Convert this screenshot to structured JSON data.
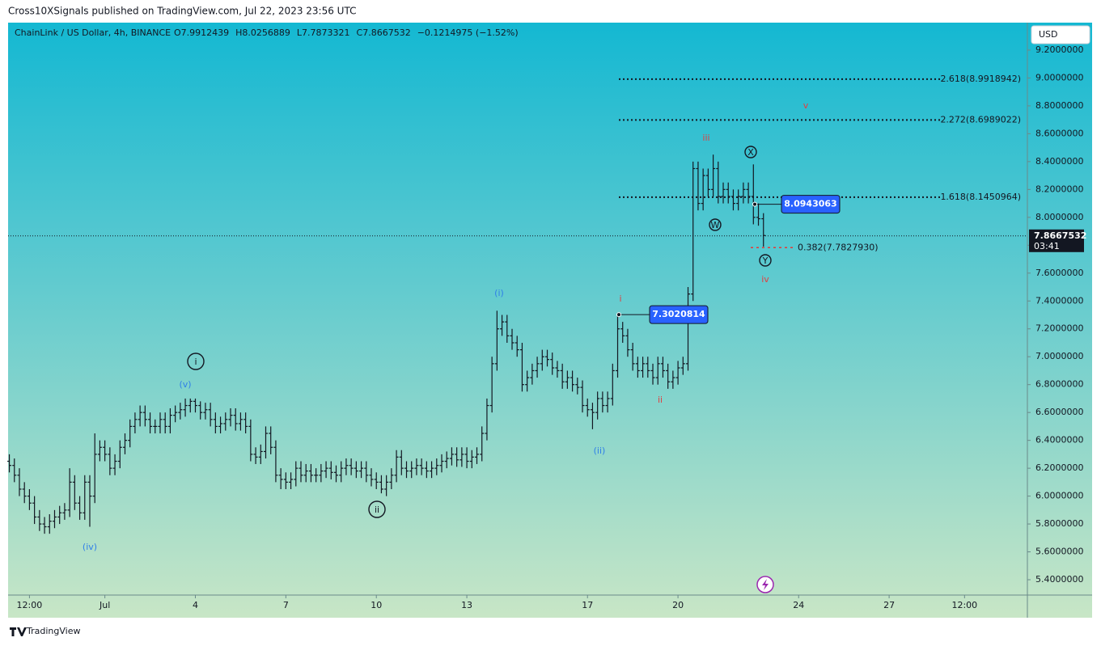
{
  "header": {
    "publisher": "Cross10XSignals published on TradingView.com, Jul 22, 2023 23:56 UTC",
    "brand": "TradingView",
    "currency_button": "USD"
  },
  "chart_data": {
    "type": "ohlc",
    "symbol": "ChainLink / US Dollar, 4h, BINANCE",
    "ohlc_readout": [
      "O7.9912439",
      "H8.0256889",
      "L7.7873321",
      "C7.8667532",
      "−0.1214975 (−1.52%)"
    ],
    "x": [
      -76,
      -72,
      -68,
      -64,
      -60,
      -56,
      -52,
      -48,
      -44,
      -40,
      -36,
      -32,
      -28,
      -24,
      -20,
      -16,
      -12,
      -8,
      -4,
      0,
      4,
      8,
      12,
      16,
      20,
      24,
      28,
      32,
      36,
      40,
      44,
      48,
      52,
      56,
      60,
      64,
      68,
      72,
      76,
      80,
      84,
      88,
      92,
      96,
      100,
      104,
      108,
      112,
      116,
      120,
      124,
      128,
      132,
      136,
      140,
      144,
      148,
      152,
      156,
      160,
      164,
      168,
      172,
      176,
      180,
      184,
      188,
      192,
      196,
      200,
      204,
      208,
      212,
      216,
      220,
      224,
      228,
      232,
      236,
      240,
      244,
      248,
      252,
      256,
      260,
      264,
      268,
      272,
      276,
      280,
      284,
      288,
      292,
      296,
      300,
      304,
      308,
      312,
      316,
      320,
      324,
      328,
      332,
      336,
      340,
      344,
      348,
      352,
      356,
      360,
      364,
      368,
      372,
      376,
      380,
      384,
      388,
      392,
      396,
      400,
      404,
      408,
      412,
      416,
      420,
      424,
      428,
      432,
      436,
      440,
      444,
      448,
      452,
      456,
      460,
      464,
      468,
      472,
      476,
      480,
      484,
      488,
      492,
      496,
      500,
      504,
      508,
      512,
      516,
      520,
      524
    ],
    "open": [
      6.25,
      6.22,
      6.15,
      6.05,
      6.0,
      5.95,
      5.85,
      5.8,
      5.78,
      5.82,
      5.85,
      5.88,
      5.9,
      6.1,
      5.95,
      5.88,
      6.1,
      6.0,
      6.3,
      6.35,
      6.3,
      6.2,
      6.25,
      6.35,
      6.4,
      6.5,
      6.55,
      6.6,
      6.55,
      6.5,
      6.5,
      6.55,
      6.5,
      6.58,
      6.6,
      6.62,
      6.65,
      6.68,
      6.65,
      6.6,
      6.62,
      6.55,
      6.5,
      6.52,
      6.55,
      6.58,
      6.52,
      6.55,
      6.5,
      6.3,
      6.28,
      6.32,
      6.45,
      6.35,
      6.15,
      6.12,
      6.1,
      6.12,
      6.2,
      6.15,
      6.18,
      6.15,
      6.15,
      6.18,
      6.2,
      6.17,
      6.15,
      6.2,
      6.22,
      6.2,
      6.18,
      6.2,
      6.15,
      6.12,
      6.1,
      6.05,
      6.1,
      6.15,
      6.28,
      6.2,
      6.18,
      6.2,
      6.22,
      6.2,
      6.18,
      6.2,
      6.22,
      6.25,
      6.27,
      6.3,
      6.26,
      6.3,
      6.25,
      6.28,
      6.3,
      6.45,
      6.65,
      6.95,
      7.2,
      7.25,
      7.15,
      7.1,
      7.05,
      6.8,
      6.85,
      6.9,
      6.95,
      7.0,
      6.98,
      6.92,
      6.9,
      6.82,
      6.85,
      6.8,
      6.78,
      6.65,
      6.62,
      6.6,
      6.7,
      6.65,
      6.7,
      6.9,
      7.2,
      7.15,
      7.05,
      6.95,
      6.9,
      6.95,
      6.9,
      6.85,
      6.95,
      6.9,
      6.82,
      6.85,
      6.92,
      6.95,
      7.45,
      8.35,
      8.1,
      8.3,
      8.2,
      8.35,
      8.15,
      8.2,
      8.15,
      8.1,
      8.15,
      8.2,
      8.15,
      8.0,
      7.99
    ],
    "high": [
      6.3,
      6.27,
      6.2,
      6.1,
      6.05,
      6.0,
      5.9,
      5.85,
      5.87,
      5.9,
      5.93,
      5.95,
      6.2,
      6.15,
      6.0,
      6.15,
      6.15,
      6.45,
      6.4,
      6.4,
      6.35,
      6.3,
      6.4,
      6.45,
      6.55,
      6.6,
      6.65,
      6.65,
      6.6,
      6.55,
      6.6,
      6.6,
      6.63,
      6.65,
      6.67,
      6.7,
      6.7,
      6.7,
      6.68,
      6.67,
      6.67,
      6.6,
      6.57,
      6.6,
      6.63,
      6.63,
      6.6,
      6.6,
      6.55,
      6.35,
      6.37,
      6.5,
      6.5,
      6.4,
      6.2,
      6.17,
      6.17,
      6.25,
      6.25,
      6.23,
      6.23,
      6.2,
      6.23,
      6.25,
      6.25,
      6.22,
      6.25,
      6.27,
      6.27,
      6.25,
      6.25,
      6.25,
      6.2,
      6.17,
      6.15,
      6.15,
      6.2,
      6.33,
      6.33,
      6.25,
      6.25,
      6.27,
      6.27,
      6.25,
      6.25,
      6.27,
      6.3,
      6.32,
      6.35,
      6.35,
      6.35,
      6.35,
      6.33,
      6.35,
      6.5,
      6.7,
      7.0,
      7.33,
      7.3,
      7.3,
      7.2,
      7.15,
      7.1,
      6.9,
      6.95,
      7.0,
      7.05,
      7.05,
      7.03,
      6.97,
      6.95,
      6.9,
      6.9,
      6.85,
      6.83,
      6.7,
      6.67,
      6.75,
      6.75,
      6.75,
      6.95,
      7.3,
      7.25,
      7.2,
      7.1,
      7.0,
      7.0,
      7.0,
      6.95,
      7.0,
      7.0,
      6.95,
      6.9,
      6.97,
      7.0,
      7.5,
      8.4,
      8.4,
      8.35,
      8.35,
      8.45,
      8.4,
      8.25,
      8.25,
      8.2,
      8.2,
      8.25,
      8.25,
      8.38,
      8.1,
      8.03
    ],
    "low": [
      6.17,
      6.1,
      6.0,
      5.95,
      5.9,
      5.8,
      5.75,
      5.73,
      5.73,
      5.77,
      5.8,
      5.83,
      5.85,
      5.9,
      5.83,
      5.83,
      5.78,
      5.95,
      6.25,
      6.25,
      6.15,
      6.15,
      6.2,
      6.3,
      6.35,
      6.45,
      6.5,
      6.5,
      6.45,
      6.45,
      6.45,
      6.45,
      6.45,
      6.53,
      6.55,
      6.57,
      6.6,
      6.6,
      6.55,
      6.55,
      6.5,
      6.45,
      6.45,
      6.47,
      6.5,
      6.47,
      6.47,
      6.45,
      6.25,
      6.23,
      6.23,
      6.27,
      6.3,
      6.1,
      6.05,
      6.05,
      6.05,
      6.07,
      6.1,
      6.1,
      6.1,
      6.1,
      6.1,
      6.13,
      6.12,
      6.1,
      6.1,
      6.15,
      6.15,
      6.13,
      6.13,
      6.1,
      6.07,
      6.05,
      6.02,
      6.0,
      6.05,
      6.1,
      6.15,
      6.13,
      6.13,
      6.15,
      6.15,
      6.13,
      6.13,
      6.15,
      6.17,
      6.2,
      6.22,
      6.21,
      6.21,
      6.2,
      6.2,
      6.23,
      6.25,
      6.4,
      6.6,
      6.9,
      7.15,
      7.1,
      7.05,
      7.0,
      6.75,
      6.75,
      6.8,
      6.85,
      6.9,
      6.93,
      6.87,
      6.85,
      6.77,
      6.77,
      6.75,
      6.73,
      6.6,
      6.57,
      6.48,
      6.55,
      6.6,
      6.6,
      6.65,
      6.85,
      7.1,
      7.0,
      6.9,
      6.85,
      6.85,
      6.85,
      6.8,
      6.8,
      6.85,
      6.77,
      6.77,
      6.8,
      6.87,
      6.9,
      7.4,
      8.05,
      8.05,
      8.15,
      8.15,
      8.1,
      8.1,
      8.1,
      8.05,
      8.05,
      8.1,
      8.1,
      7.95,
      7.94,
      7.79
    ],
    "close": [
      6.22,
      6.15,
      6.05,
      6.0,
      5.95,
      5.85,
      5.8,
      5.78,
      5.82,
      5.85,
      5.88,
      5.9,
      6.1,
      5.95,
      5.88,
      6.1,
      6.0,
      6.3,
      6.35,
      6.3,
      6.2,
      6.25,
      6.35,
      6.4,
      6.5,
      6.55,
      6.6,
      6.55,
      6.5,
      6.5,
      6.55,
      6.5,
      6.58,
      6.6,
      6.62,
      6.65,
      6.68,
      6.65,
      6.6,
      6.62,
      6.55,
      6.5,
      6.52,
      6.55,
      6.58,
      6.52,
      6.55,
      6.5,
      6.3,
      6.28,
      6.32,
      6.45,
      6.35,
      6.15,
      6.12,
      6.1,
      6.12,
      6.2,
      6.15,
      6.18,
      6.15,
      6.15,
      6.18,
      6.2,
      6.17,
      6.15,
      6.2,
      6.22,
      6.2,
      6.18,
      6.2,
      6.15,
      6.12,
      6.1,
      6.05,
      6.1,
      6.15,
      6.28,
      6.2,
      6.18,
      6.2,
      6.22,
      6.2,
      6.18,
      6.2,
      6.22,
      6.25,
      6.27,
      6.3,
      6.26,
      6.3,
      6.25,
      6.28,
      6.3,
      6.45,
      6.65,
      6.95,
      7.2,
      7.25,
      7.15,
      7.1,
      7.05,
      6.8,
      6.85,
      6.9,
      6.95,
      7.0,
      6.98,
      6.92,
      6.9,
      6.82,
      6.85,
      6.8,
      6.78,
      6.65,
      6.62,
      6.6,
      6.7,
      6.65,
      6.7,
      6.9,
      7.2,
      7.15,
      7.05,
      6.95,
      6.9,
      6.95,
      6.9,
      6.85,
      6.95,
      6.9,
      6.82,
      6.85,
      6.92,
      6.95,
      7.45,
      8.35,
      8.1,
      8.3,
      8.2,
      8.35,
      8.15,
      8.2,
      8.15,
      8.1,
      8.15,
      8.2,
      8.15,
      8.0,
      7.99,
      7.87
    ],
    "color": "#131722",
    "xlim": [
      -77,
      734
    ],
    "xticks": [
      {
        "value": -60,
        "label": "12:00"
      },
      {
        "value": 0,
        "label": "Jul"
      },
      {
        "value": 72,
        "label": "4"
      },
      {
        "value": 144,
        "label": "7"
      },
      {
        "value": 216,
        "label": "10"
      },
      {
        "value": 288,
        "label": "13"
      },
      {
        "value": 384,
        "label": "17"
      },
      {
        "value": 456,
        "label": "20"
      },
      {
        "value": 552,
        "label": "24"
      },
      {
        "value": 624,
        "label": "27"
      },
      {
        "value": 684,
        "label": "12:00"
      }
    ],
    "ylim": [
      5.29,
      9.397
    ],
    "yticks": [
      {
        "value": 5.4,
        "label": "5.4000000"
      },
      {
        "value": 5.6,
        "label": "5.6000000"
      },
      {
        "value": 5.8,
        "label": "5.8000000"
      },
      {
        "value": 6.0,
        "label": "6.0000000"
      },
      {
        "value": 6.2,
        "label": "6.2000000"
      },
      {
        "value": 6.4,
        "label": "6.4000000"
      },
      {
        "value": 6.6,
        "label": "6.6000000"
      },
      {
        "value": 6.8,
        "label": "6.8000000"
      },
      {
        "value": 7.0,
        "label": "7.0000000"
      },
      {
        "value": 7.2,
        "label": "7.2000000"
      },
      {
        "value": 7.4,
        "label": "7.4000000"
      },
      {
        "value": 7.6,
        "label": "7.6000000"
      },
      {
        "value": 7.8,
        "label": "7.8000000"
      },
      {
        "value": 8.0,
        "label": "8.0000000"
      },
      {
        "value": 8.2,
        "label": "8.2000000"
      },
      {
        "value": 8.4,
        "label": "8.4000000"
      },
      {
        "value": 8.6,
        "label": "8.6000000"
      },
      {
        "value": 8.8,
        "label": "8.8000000"
      },
      {
        "value": 9.0,
        "label": "9.0000000"
      },
      {
        "value": 9.2,
        "label": "9.2000000"
      }
    ],
    "grid": false,
    "current_price": 7.8667532,
    "countdown": "03:41",
    "fib_levels": [
      {
        "value": 8.9918942,
        "label": "2.618(8.9918942)",
        "color": "#131722"
      },
      {
        "value": 8.6989022,
        "label": "2.272(8.6989022)",
        "color": "#131722"
      },
      {
        "value": 8.1450964,
        "label": "1.618(8.1450964)",
        "color": "#131722"
      },
      {
        "value": 7.782793,
        "label": "0.382(7.7827930)",
        "color": "#e53935"
      }
    ],
    "price_labels": [
      8.0943063,
      7.3020814
    ],
    "wave_labels": [
      {
        "text": "(iv)",
        "color": "#2f7fe8",
        "circled": false
      },
      {
        "text": "(v)",
        "color": "#2f7fe8",
        "circled": false
      },
      {
        "text": "i",
        "color": "#131722",
        "circled": true
      },
      {
        "text": "ii",
        "color": "#131722",
        "circled": true
      },
      {
        "text": "(i)",
        "color": "#2f7fe8",
        "circled": false
      },
      {
        "text": "(ii)",
        "color": "#2f7fe8",
        "circled": false
      },
      {
        "text": "i",
        "color": "#e04040",
        "circled": false
      },
      {
        "text": "ii",
        "color": "#e04040",
        "circled": false
      },
      {
        "text": "iii",
        "color": "#e04040",
        "circled": false
      },
      {
        "text": "v",
        "color": "#e04040",
        "circled": false
      },
      {
        "text": "iv",
        "color": "#e04040",
        "circled": false
      },
      {
        "text": "W",
        "color": "#131722",
        "circled": true
      },
      {
        "text": "X",
        "color": "#131722",
        "circled": true
      },
      {
        "text": "Y",
        "color": "#131722",
        "circled": true
      }
    ]
  }
}
